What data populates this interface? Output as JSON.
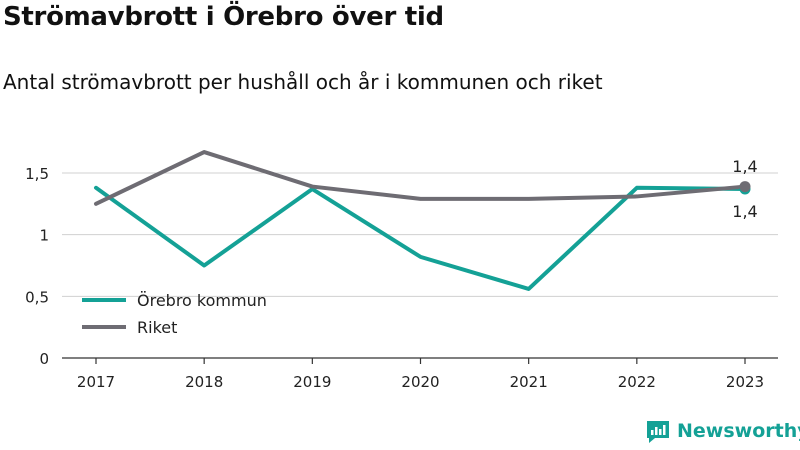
{
  "title": "Strömavbrott i Örebro över tid",
  "subtitle": "Antal strömavbrott per hushåll och år i kommunen och riket",
  "brand": {
    "name": "Newsworthy",
    "icon": "newsworthy-logo-icon"
  },
  "colors": {
    "orebro": "#14a196",
    "riket": "#6e6c73",
    "grid": "#d0d0d0",
    "axis": "#333333"
  },
  "chart_data": {
    "type": "line",
    "categories": [
      "2017",
      "2018",
      "2019",
      "2020",
      "2021",
      "2022",
      "2023"
    ],
    "series": [
      {
        "name": "Örebro kommun",
        "color": "#14a196",
        "values": [
          1.38,
          0.75,
          1.37,
          0.82,
          0.56,
          1.38,
          1.37
        ],
        "end_label": "1,4"
      },
      {
        "name": "Riket",
        "color": "#6e6c73",
        "values": [
          1.25,
          1.67,
          1.39,
          1.29,
          1.29,
          1.31,
          1.39
        ],
        "end_label": "1,4"
      }
    ],
    "yticks": [
      {
        "value": 0,
        "label": "0"
      },
      {
        "value": 0.5,
        "label": "0,5"
      },
      {
        "value": 1,
        "label": "1"
      },
      {
        "value": 1.5,
        "label": "1,5"
      }
    ],
    "ylim": [
      0,
      1.5
    ],
    "xlabel": "",
    "ylabel": "",
    "grid": true,
    "legend": {
      "position": "left-lower"
    }
  }
}
